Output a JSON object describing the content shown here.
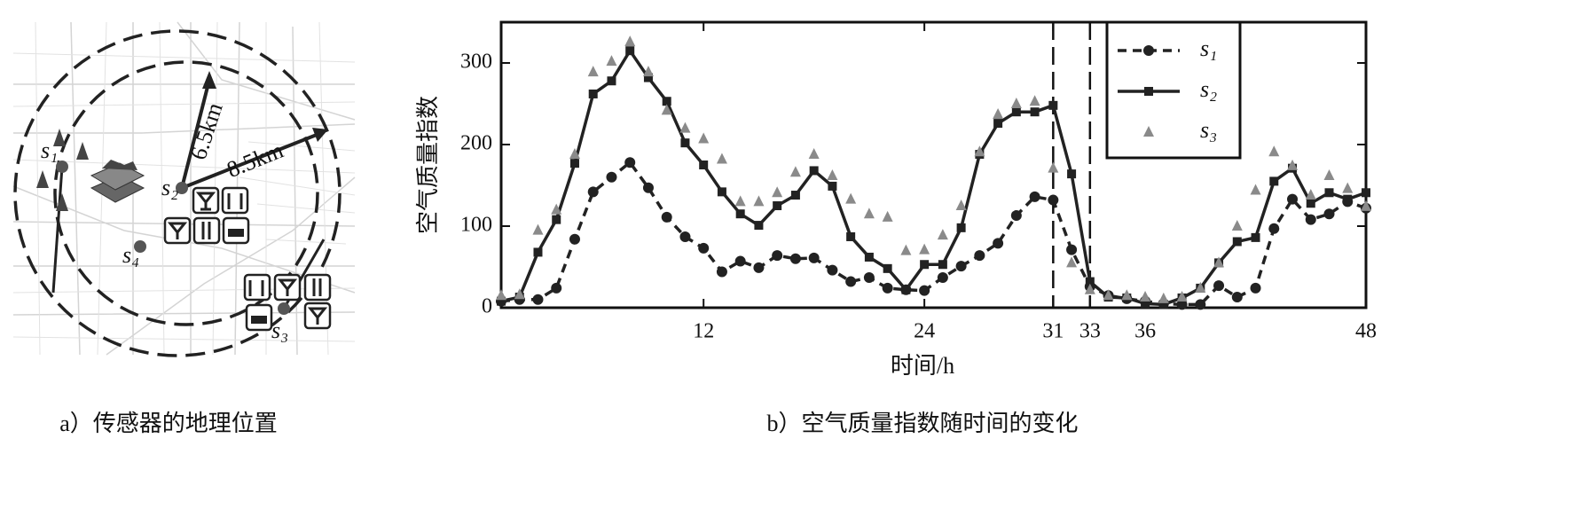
{
  "map": {
    "sensors": [
      "s₁",
      "s₂",
      "s₃",
      "s₄"
    ],
    "radii": [
      "6.5km",
      "8.5km"
    ]
  },
  "captions": [
    "a）传感器的地理位置",
    "b）空气质量指数随时间的变化"
  ],
  "chart_data": {
    "type": "line",
    "x_label": "时间/h",
    "y_label": "空气质量指数",
    "x": [
      1,
      2,
      3,
      4,
      5,
      6,
      7,
      8,
      9,
      10,
      11,
      12,
      13,
      14,
      15,
      16,
      17,
      18,
      19,
      20,
      21,
      22,
      23,
      24,
      25,
      26,
      27,
      28,
      29,
      30,
      31,
      32,
      33,
      34,
      35,
      36,
      37,
      38,
      39,
      40,
      41,
      42,
      43,
      44,
      45,
      46,
      47,
      48
    ],
    "series": [
      {
        "name": "s₁",
        "color": "#222222",
        "line": "dashed",
        "marker": "circle",
        "values": [
          8,
          10,
          10,
          24,
          84,
          142,
          160,
          178,
          147,
          111,
          87,
          73,
          44,
          57,
          49,
          64,
          60,
          61,
          46,
          32,
          37,
          24,
          22,
          21,
          37,
          51,
          64,
          79,
          113,
          136,
          132,
          71,
          26,
          15,
          11,
          8,
          5,
          4,
          4,
          27,
          13,
          24,
          97,
          133,
          108,
          115,
          130,
          122
        ]
      },
      {
        "name": "s₂",
        "color": "#222222",
        "line": "solid",
        "marker": "square",
        "values": [
          8,
          13,
          68,
          108,
          177,
          262,
          278,
          315,
          282,
          253,
          202,
          175,
          142,
          115,
          101,
          125,
          138,
          168,
          149,
          87,
          62,
          48,
          22,
          53,
          53,
          98,
          188,
          226,
          240,
          240,
          248,
          164,
          32,
          13,
          12,
          5,
          4,
          12,
          24,
          55,
          81,
          86,
          155,
          171,
          128,
          141,
          133,
          141
        ]
      },
      {
        "name": "s₃",
        "color": "#8a8a8a",
        "line": "none",
        "marker": "triangle",
        "values": [
          15,
          16,
          95,
          120,
          188,
          289,
          302,
          326,
          289,
          242,
          220,
          207,
          182,
          130,
          130,
          141,
          166,
          188,
          162,
          133,
          115,
          111,
          70,
          71,
          89,
          125,
          191,
          237,
          250,
          253,
          171,
          55,
          22,
          15,
          15,
          13,
          11,
          13,
          24,
          55,
          100,
          144,
          191,
          174,
          138,
          162,
          146,
          124
        ]
      }
    ],
    "xlim": [
      1,
      48
    ],
    "xticks": [
      12,
      24,
      31,
      33,
      36,
      48
    ],
    "ylim": [
      0,
      350
    ],
    "yticks": [
      0,
      100,
      200,
      300
    ],
    "vlines": [
      31,
      33
    ],
    "legend": "upper right",
    "grid": false
  }
}
